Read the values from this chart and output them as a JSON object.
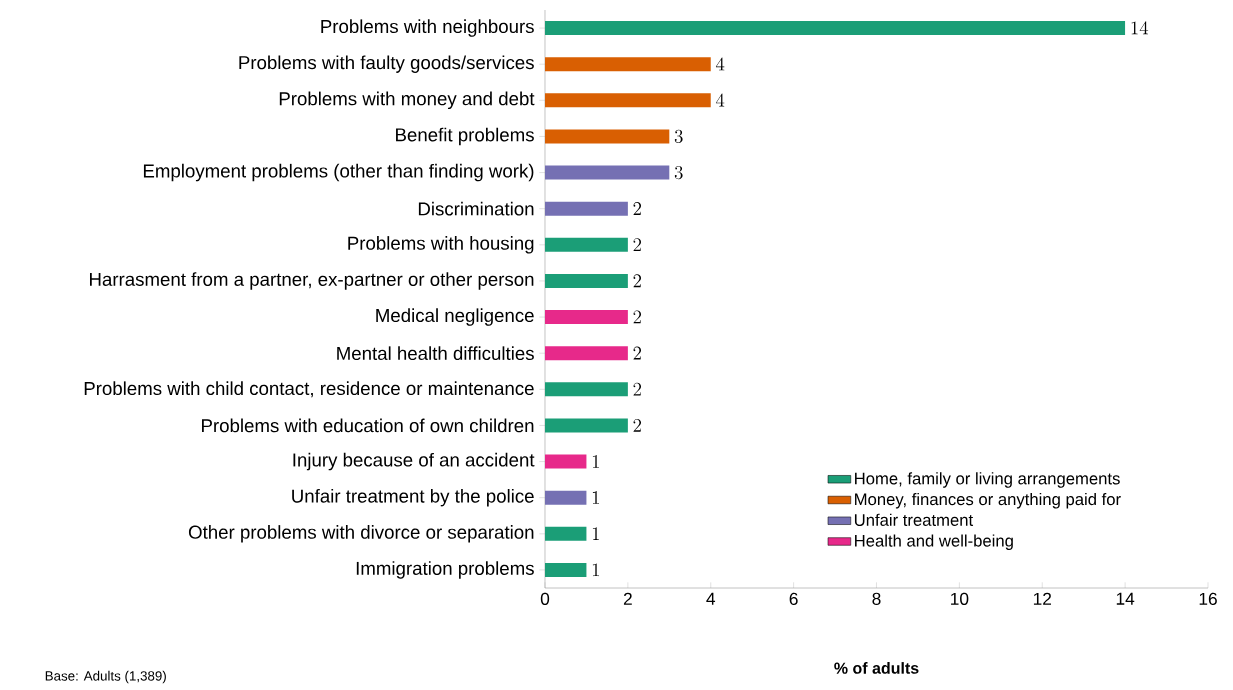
{
  "chart_data": {
    "type": "bar",
    "orientation": "horizontal",
    "xlabel": "% of adults",
    "categories": [
      "Problems with neighbours",
      "Problems with faulty goods/services",
      "Problems with money and debt",
      "Benefit problems",
      "Employment problems (other than finding work)",
      "Discrimination",
      "Problems with housing",
      "Harrasment from a partner, ex-partner or other person",
      "Medical negligence",
      "Mental health difficulties",
      "Problems with child contact, residence or maintenance",
      "Problems with education of own children",
      "Injury because of an accident",
      "Unfair treatment by the police",
      "Other problems with divorce or separation",
      "Immigration problems"
    ],
    "series": [
      {
        "name": "Home, family or living arrangements",
        "color": "#1b9e77",
        "values": [
          14,
          null,
          null,
          null,
          null,
          null,
          2,
          2,
          null,
          null,
          2,
          2,
          null,
          null,
          1,
          1
        ]
      },
      {
        "name": "Money, finances or anything paid for",
        "color": "#d95f02",
        "values": [
          null,
          4,
          4,
          3,
          null,
          null,
          null,
          null,
          null,
          null,
          null,
          null,
          null,
          null,
          null,
          null
        ]
      },
      {
        "name": "Unfair treatment",
        "color": "#7570b3",
        "values": [
          null,
          null,
          null,
          null,
          3,
          2,
          null,
          null,
          null,
          null,
          null,
          null,
          null,
          1,
          null,
          null
        ]
      },
      {
        "name": "Health and well-being",
        "color": "#e7298a",
        "values": [
          null,
          null,
          null,
          null,
          null,
          null,
          null,
          null,
          2,
          2,
          null,
          null,
          1,
          null,
          null,
          null
        ]
      }
    ],
    "xlim": [
      0,
      16
    ],
    "xticks": [
      0,
      2,
      4,
      6,
      8,
      10,
      12,
      14,
      16
    ],
    "data_labels": true,
    "legend": "bottom right",
    "grid": false,
    "annotations": [
      "Base: Adults (1,389)"
    ]
  }
}
